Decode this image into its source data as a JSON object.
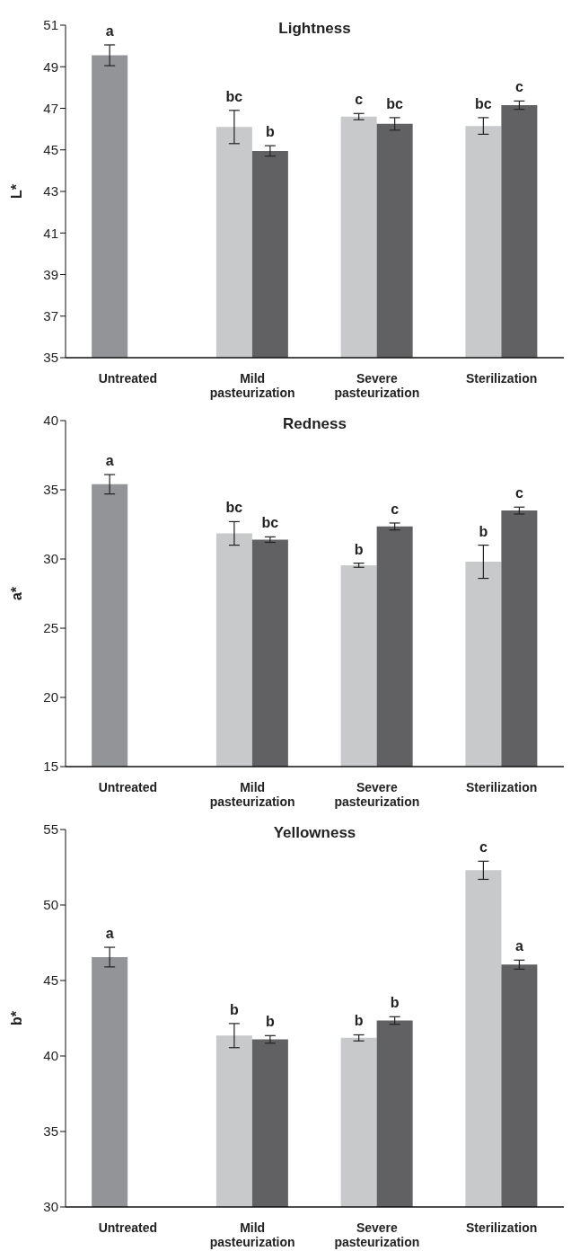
{
  "chart_data": [
    {
      "type": "bar",
      "title": "Lightness",
      "ylabel": "L*",
      "categories": [
        "Untreated",
        "Mild pasteurization",
        "Severe pasteurization",
        "Sterilization"
      ],
      "ylim": [
        35,
        51
      ],
      "yticks": [
        35,
        37,
        39,
        41,
        43,
        45,
        47,
        49,
        51
      ],
      "grid": false,
      "legend": false,
      "series": [
        {
          "colors": [
            "#939498",
            "#c8c9cb",
            "#c8c9cb",
            "#c8c9cb"
          ],
          "values": [
            49.55,
            46.1,
            46.6,
            46.15
          ],
          "errors": [
            0.5,
            0.8,
            0.15,
            0.4
          ],
          "value_labels": [
            "a",
            "bc",
            "c",
            "bc"
          ]
        },
        {
          "color": "#616163",
          "values": [
            null,
            44.95,
            46.25,
            47.15
          ],
          "errors": [
            null,
            0.25,
            0.3,
            0.2
          ],
          "value_labels": [
            null,
            "b",
            "bc",
            "c"
          ]
        }
      ]
    },
    {
      "type": "bar",
      "title": "Redness",
      "ylabel": "a*",
      "categories": [
        "Untreated",
        "Mild pasteurization",
        "Severe pasteurization",
        "Sterilization"
      ],
      "ylim": [
        15,
        40
      ],
      "yticks": [
        15,
        20,
        25,
        30,
        35,
        40
      ],
      "grid": false,
      "legend": false,
      "series": [
        {
          "colors": [
            "#939498",
            "#c8c9cb",
            "#c8c9cb",
            "#c8c9cb"
          ],
          "values": [
            35.4,
            31.85,
            29.55,
            29.8
          ],
          "errors": [
            0.7,
            0.85,
            0.15,
            1.2
          ],
          "value_labels": [
            "a",
            "bc",
            "b",
            "b"
          ]
        },
        {
          "color": "#616163",
          "values": [
            null,
            31.4,
            32.35,
            33.5
          ],
          "errors": [
            null,
            0.2,
            0.25,
            0.25
          ],
          "value_labels": [
            null,
            "bc",
            "c",
            "c"
          ]
        }
      ]
    },
    {
      "type": "bar",
      "title": "Yellowness",
      "ylabel": "b*",
      "categories": [
        "Untreated",
        "Mild pasteurization",
        "Severe pasteurization",
        "Sterilization"
      ],
      "ylim": [
        30,
        55
      ],
      "yticks": [
        30,
        35,
        40,
        45,
        50,
        55
      ],
      "grid": false,
      "legend": false,
      "series": [
        {
          "colors": [
            "#939498",
            "#c8c9cb",
            "#c8c9cb",
            "#c8c9cb"
          ],
          "values": [
            46.55,
            41.35,
            41.2,
            52.3
          ],
          "errors": [
            0.65,
            0.8,
            0.2,
            0.6
          ],
          "value_labels": [
            "a",
            "b",
            "b",
            "c"
          ]
        },
        {
          "color": "#616163",
          "values": [
            null,
            41.1,
            42.35,
            46.05
          ],
          "errors": [
            null,
            0.25,
            0.25,
            0.3
          ],
          "value_labels": [
            null,
            "b",
            "b",
            "a"
          ]
        }
      ]
    }
  ]
}
